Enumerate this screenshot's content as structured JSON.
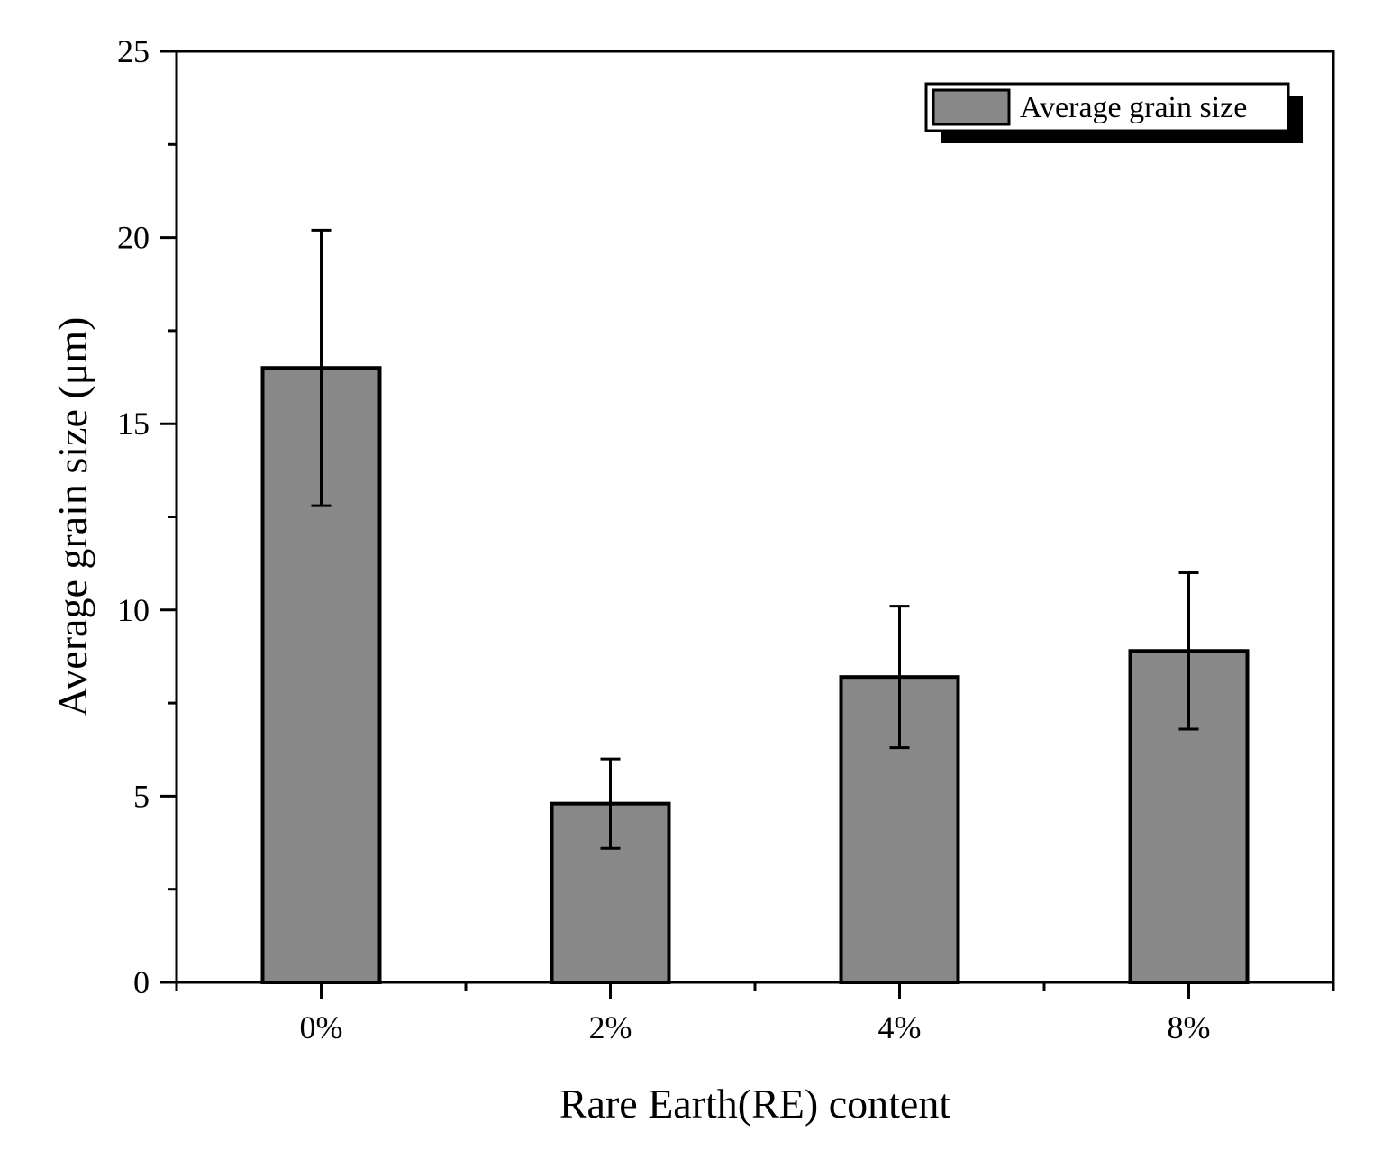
{
  "chart_data": {
    "type": "bar",
    "categories": [
      "0%",
      "2%",
      "4%",
      "8%"
    ],
    "series": [
      {
        "name": "Average grain size",
        "values": [
          16.5,
          4.8,
          8.2,
          8.9
        ],
        "error_low": [
          12.8,
          3.6,
          6.3,
          6.8
        ],
        "error_high": [
          20.2,
          6.0,
          10.1,
          11.0
        ]
      }
    ],
    "xlabel": "Rare Earth(RE) content",
    "ylabel": "Average grain size (μm)",
    "ylim": [
      0,
      25
    ],
    "yticks": [
      "0",
      "5",
      "10",
      "15",
      "20",
      "25"
    ],
    "grid": false,
    "legend_position": "top-right",
    "colors": {
      "bar_fill": "#888888",
      "bar_stroke": "#000000"
    }
  }
}
